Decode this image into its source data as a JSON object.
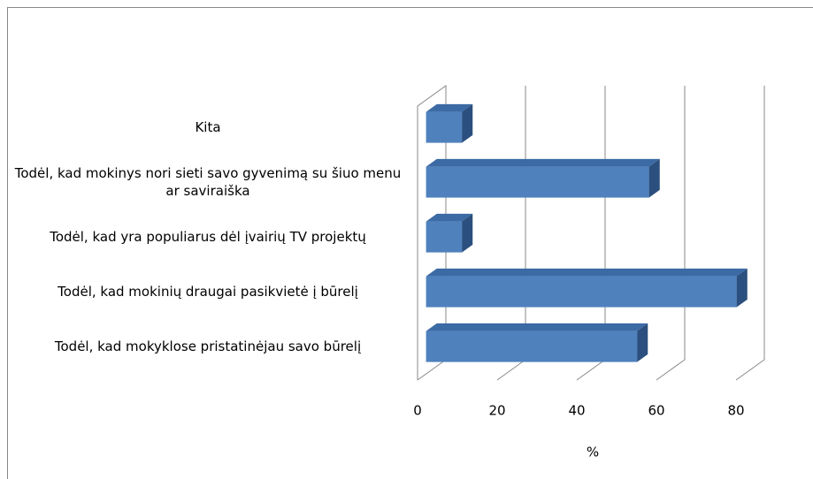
{
  "chart_data": {
    "type": "bar3d",
    "orientation": "horizontal",
    "categories": [
      "Kita",
      "Todėl, kad mokinys nori sieti savo gyvenimą su šiuo menu ar saviraiška",
      "Todėl, kad yra populiarus dėl įvairių TV projektų",
      "Todėl, kad mokinių draugai pasikvietė į būrelį",
      "Todėl, kad mokyklose pristatinėjau savo būrelį"
    ],
    "values": [
      9,
      56,
      9,
      78,
      53
    ],
    "color": "#4f81bd",
    "xlabel": "%",
    "xlim": [
      0,
      80
    ],
    "xticks": [
      0,
      20,
      40,
      60,
      80
    ],
    "grid": true
  }
}
